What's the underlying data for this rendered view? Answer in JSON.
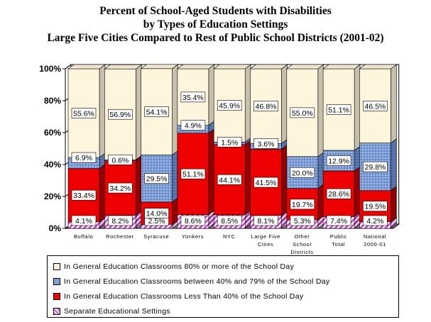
{
  "titles": {
    "line1": "Percent of School-Aged Students with Disabilities",
    "line2": "by Types of Education Settings",
    "line3": "Large Five Cities Compared to Rest of Public School Districts (2001-02)"
  },
  "colors": {
    "general80": "#FFF5DC",
    "between40_79": "#7F9FD8",
    "less40": "#EE0000",
    "separate": "#CC44CC",
    "floor": "#7F7F7F"
  },
  "chart_data": {
    "type": "bar",
    "stacked": true,
    "ylim": [
      0,
      100
    ],
    "yticks": [
      "0%",
      "20%",
      "40%",
      "60%",
      "80%",
      "100%"
    ],
    "categories": [
      [
        "Buffalo"
      ],
      [
        "Rochester"
      ],
      [
        "Syracuse"
      ],
      [
        "Yonkers"
      ],
      [
        "NYC"
      ],
      [
        "Large Five",
        "Cities"
      ],
      [
        "Other",
        "School",
        "Districts"
      ],
      [
        "Public",
        "Total"
      ],
      [
        "National",
        "2000-01"
      ]
    ],
    "series": [
      {
        "name": "Separate Educational Settings",
        "values": [
          4.1,
          8.2,
          2.5,
          8.6,
          8.5,
          8.1,
          5.3,
          7.4,
          4.2
        ],
        "labels": [
          "4.1%",
          "8.2%",
          "2.5%",
          "8.6%",
          "8.5%",
          "8.1%",
          "5.3%",
          "7.4%",
          "4.2%"
        ]
      },
      {
        "name": "In General Education Classrooms Less Than 40% of the School Day",
        "values": [
          33.4,
          34.2,
          14.0,
          51.1,
          44.1,
          41.5,
          19.7,
          28.6,
          19.5
        ],
        "labels": [
          "33.4%",
          "34.2%",
          "14.0%",
          "51.1%",
          "44.1%",
          "41.5%",
          "19.7%",
          "28.6%",
          "19.5%"
        ]
      },
      {
        "name": "In General Education Classrooms between 40% and 79% of the School Day",
        "values": [
          6.9,
          0.6,
          29.5,
          4.9,
          1.5,
          3.6,
          20.0,
          12.9,
          29.8
        ],
        "labels": [
          "6.9%",
          "0.6%",
          "29.5%",
          "4.9%",
          "1.5%",
          "3.6%",
          "20.0%",
          "12.9%",
          "29.8%"
        ]
      },
      {
        "name": "In General Education Classrooms 80% or more of the School Day",
        "values": [
          55.6,
          56.9,
          54.1,
          35.4,
          45.9,
          46.8,
          55.0,
          51.1,
          46.5
        ],
        "labels": [
          "55.6%",
          "56.9%",
          "54.1%",
          "35.4%",
          "45.9%",
          "46.8%",
          "55.0%",
          "51.1%",
          "46.5%"
        ]
      }
    ]
  },
  "legend": [
    {
      "label": "In General Education Classrooms 80% or more of the School Day",
      "color_key": "general80"
    },
    {
      "label": "In General Education Classrooms between 40% and 79% of the School Day",
      "color_key": "between40_79"
    },
    {
      "label": "In General Education Classrooms Less Than 40% of the School Day",
      "color_key": "less40"
    },
    {
      "label": "Separate Educational Settings",
      "color_key": "separate"
    }
  ]
}
